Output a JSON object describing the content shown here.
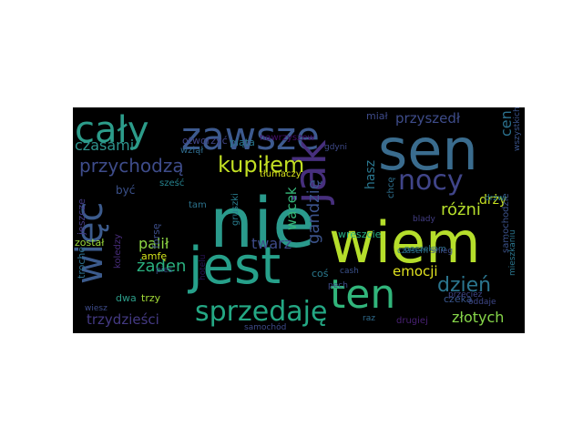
{
  "palette": {
    "background": "#000000",
    "figure_background": "#ffffff"
  },
  "words": [
    {
      "text": "nie",
      "color": "#2a9a8c"
    },
    {
      "text": "wiem",
      "color": "#b5de2b"
    },
    {
      "text": "sen",
      "color": "#3a6c8e"
    },
    {
      "text": "jest",
      "color": "#26a08a"
    },
    {
      "text": "zawsze",
      "color": "#3d5a8f"
    },
    {
      "text": "cały",
      "color": "#2c9c8a"
    },
    {
      "text": "jak",
      "color": "#472f7d"
    },
    {
      "text": "ten",
      "color": "#31b57b"
    },
    {
      "text": "więc",
      "color": "#3c5b8d"
    },
    {
      "text": "sprzedaję",
      "color": "#24a884"
    },
    {
      "text": "nocy",
      "color": "#404589"
    },
    {
      "text": "kupiłem",
      "color": "#c2df23"
    },
    {
      "text": "przychodzą",
      "color": "#3e4c8a"
    },
    {
      "text": "czasami",
      "color": "#2e938d"
    },
    {
      "text": "dzień",
      "color": "#2b758e"
    },
    {
      "text": "różni",
      "color": "#b6de2b"
    },
    {
      "text": "gandzię",
      "color": "#3b538b"
    },
    {
      "text": "wacek",
      "color": "#35b779"
    },
    {
      "text": "twarz",
      "color": "#3e4b8a"
    },
    {
      "text": "palił",
      "color": "#8dd644"
    },
    {
      "text": "żaden",
      "color": "#2ab07f"
    },
    {
      "text": "trzydzieści",
      "color": "#443a83"
    },
    {
      "text": "emocji",
      "color": "#e0e220"
    },
    {
      "text": "złotych",
      "color": "#86d549"
    },
    {
      "text": "przyszedł",
      "color": "#3e4c8a"
    },
    {
      "text": "cen",
      "color": "#2c718e"
    },
    {
      "text": "hasz",
      "color": "#2a768e"
    },
    {
      "text": "drży",
      "color": "#c7e020"
    },
    {
      "text": "miał",
      "color": "#3e4a89"
    },
    {
      "text": "otworzyć",
      "color": "#414487"
    },
    {
      "text": "piąta",
      "color": "#2a778e"
    },
    {
      "text": "nawrzyszew",
      "color": "#440f68"
    },
    {
      "text": "tłumaczy",
      "color": "#d8e219"
    },
    {
      "text": "sześć",
      "color": "#26828e"
    },
    {
      "text": "wziął",
      "color": "#2f6c8e"
    },
    {
      "text": "być",
      "color": "#3b518b"
    },
    {
      "text": "tam",
      "color": "#2c738e"
    },
    {
      "text": "jeszcze",
      "color": "#443b84"
    },
    {
      "text": "forsę",
      "color": "#3d4e8a"
    },
    {
      "text": "gruszki",
      "color": "#287d8e"
    },
    {
      "text": "został",
      "color": "#9bd93c"
    },
    {
      "text": "koledzy",
      "color": "#472c7a"
    },
    {
      "text": "amfę",
      "color": "#d2e21b"
    },
    {
      "text": "pies",
      "color": "#3a538b"
    },
    {
      "text": "trochę",
      "color": "#2d708e"
    },
    {
      "text": "dwa",
      "color": "#2c9d89"
    },
    {
      "text": "trzy",
      "color": "#a2da37"
    },
    {
      "text": "wiesz",
      "color": "#3e4c8a"
    },
    {
      "text": "wszystkich",
      "color": "#3a548c"
    },
    {
      "text": "samochodzie",
      "color": "#3b528b"
    },
    {
      "text": "mieszkaniu",
      "color": "#2a768e"
    },
    {
      "text": "przecież",
      "color": "#404588"
    },
    {
      "text": "drzwi",
      "color": "#2a788e"
    },
    {
      "text": "blady",
      "color": "#433e85"
    },
    {
      "text": "chcę",
      "color": "#2e6f8e"
    },
    {
      "text": "gdyni",
      "color": "#3f4a8a"
    },
    {
      "text": "wreszcie",
      "color": "#27ad81"
    },
    {
      "text": "poczekam",
      "color": "#2c738e"
    },
    {
      "text": "czasem",
      "color": "#2c728e"
    },
    {
      "text": "śnieg",
      "color": "#3e4c8a"
    },
    {
      "text": "cash",
      "color": "#3b518b"
    },
    {
      "text": "coś",
      "color": "#2a798e"
    },
    {
      "text": "pech",
      "color": "#3d4d8a"
    },
    {
      "text": "raz",
      "color": "#2f6c8e"
    },
    {
      "text": "drugiej",
      "color": "#482173"
    },
    {
      "text": "czeka",
      "color": "#39558c"
    },
    {
      "text": "oddaje",
      "color": "#3f4889"
    },
    {
      "text": "samochód",
      "color": "#3e4a89"
    },
    {
      "text": "hotelu",
      "color": "#2a1458"
    }
  ]
}
